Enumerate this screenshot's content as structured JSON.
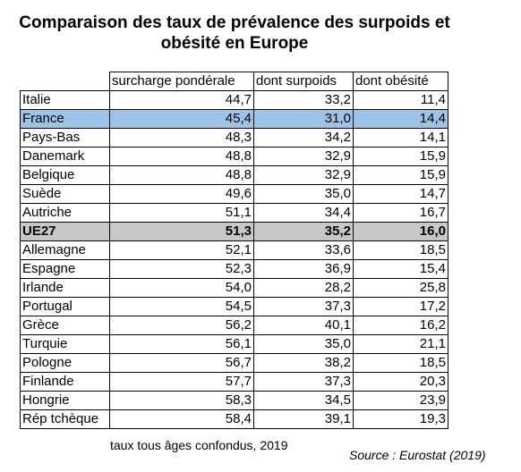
{
  "chart_data": {
    "type": "table",
    "title": "Comparaison des taux de prévalence des surpoids et obésité en Europe",
    "title_lines": [
      "Comparaison des taux de prévalence des surpoids et",
      "obésité en Europe"
    ],
    "columns": [
      "",
      "surcharge pondérale",
      "dont surpoids",
      "dont obésité"
    ],
    "rows": [
      {
        "country": "Italie",
        "values": [
          "44,7",
          "33,2",
          "11,4"
        ],
        "highlight": ""
      },
      {
        "country": "France",
        "values": [
          "45,4",
          "31,0",
          "14,4"
        ],
        "highlight": "blue"
      },
      {
        "country": "Pays-Bas",
        "values": [
          "48,3",
          "34,2",
          "14,1"
        ],
        "highlight": ""
      },
      {
        "country": "Danemark",
        "values": [
          "48,8",
          "32,9",
          "15,9"
        ],
        "highlight": ""
      },
      {
        "country": "Belgique",
        "values": [
          "48,8",
          "32,9",
          "15,9"
        ],
        "highlight": ""
      },
      {
        "country": "Suède",
        "values": [
          "49,6",
          "35,0",
          "14,7"
        ],
        "highlight": ""
      },
      {
        "country": "Autriche",
        "values": [
          "51,1",
          "34,4",
          "16,7"
        ],
        "highlight": ""
      },
      {
        "country": "UE27",
        "values": [
          "51,3",
          "35,2",
          "16,0"
        ],
        "highlight": "grey"
      },
      {
        "country": "Allemagne",
        "values": [
          "52,1",
          "33,6",
          "18,5"
        ],
        "highlight": ""
      },
      {
        "country": "Espagne",
        "values": [
          "52,3",
          "36,9",
          "15,4"
        ],
        "highlight": ""
      },
      {
        "country": "Irlande",
        "values": [
          "54,0",
          "28,2",
          "25,8"
        ],
        "highlight": ""
      },
      {
        "country": "Portugal",
        "values": [
          "54,5",
          "37,3",
          "17,2"
        ],
        "highlight": ""
      },
      {
        "country": "Grèce",
        "values": [
          "56,2",
          "40,1",
          "16,2"
        ],
        "highlight": ""
      },
      {
        "country": "Turquie",
        "values": [
          "56,1",
          "35,0",
          "21,1"
        ],
        "highlight": ""
      },
      {
        "country": "Pologne",
        "values": [
          "56,7",
          "38,2",
          "18,5"
        ],
        "highlight": ""
      },
      {
        "country": "Finlande",
        "values": [
          "57,7",
          "37,3",
          "20,3"
        ],
        "highlight": ""
      },
      {
        "country": "Hongrie",
        "values": [
          "58,3",
          "34,5",
          "23,9"
        ],
        "highlight": ""
      },
      {
        "country": "Rép tchèque",
        "values": [
          "58,4",
          "39,1",
          "19,3"
        ],
        "highlight": ""
      }
    ],
    "note": "taux tous âges confondus, 2019",
    "source": "Source : Eurostat (2019)",
    "colors": {
      "highlight_blue": "#9dc3e6",
      "highlight_grey": "#c8c8c8"
    }
  }
}
